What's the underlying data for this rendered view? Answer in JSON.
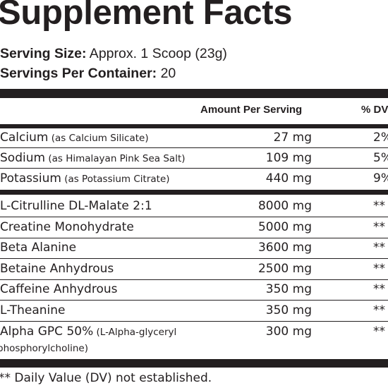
{
  "title": "Supplement Facts",
  "serving_size": {
    "label": "Serving Size:",
    "value": " Approx. 1 Scoop (23g)"
  },
  "servings_per_container": {
    "label": "Servings Per Container:",
    "value": " 20"
  },
  "header": {
    "amount": "Amount Per Serving",
    "dv": "% DV"
  },
  "minerals": [
    {
      "name": "Calcium",
      "source": " (as Calcium Silicate)",
      "amount": "27 mg",
      "dv": "2%"
    },
    {
      "name": "Sodium",
      "source": " (as Himalayan Pink Sea Salt)",
      "amount": "109 mg",
      "dv": "5%"
    },
    {
      "name": "Potassium",
      "source": " (as Potassium Citrate)",
      "amount": "440 mg",
      "dv": "9%"
    }
  ],
  "ingredients": [
    {
      "name": "L-Citrulline DL-Malate 2:1",
      "source": "",
      "amount": "8000 mg",
      "dv": "**"
    },
    {
      "name": "Creatine Monohydrate",
      "source": "",
      "amount": "5000 mg",
      "dv": "**"
    },
    {
      "name": "Beta Alanine",
      "source": "",
      "amount": "3600 mg",
      "dv": "**"
    },
    {
      "name": "Betaine Anhydrous",
      "source": "",
      "amount": "2500 mg",
      "dv": "**"
    },
    {
      "name": "Caffeine Anhydrous",
      "source": "",
      "amount": "350 mg",
      "dv": "**"
    },
    {
      "name": "L-Theanine",
      "source": "",
      "amount": "350 mg",
      "dv": "**"
    },
    {
      "name": "Alpha GPC 50%",
      "source": " (L-Alpha-glyceryl",
      "source_line2": "phosphorylcholine)",
      "amount": "300 mg",
      "dv": "**"
    }
  ],
  "footnote": "** Daily Value (DV) not established."
}
